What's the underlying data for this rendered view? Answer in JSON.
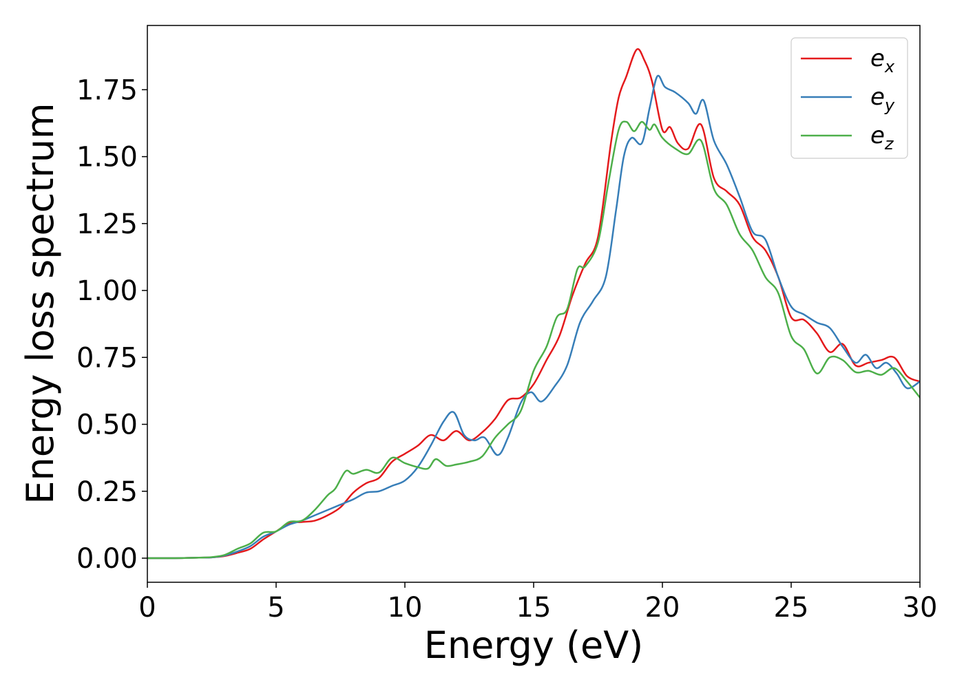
{
  "chart_data": {
    "type": "line",
    "xlabel": "Energy (eV)",
    "ylabel": "Energy loss spectrum",
    "xlim": [
      0,
      30
    ],
    "ylim": [
      -0.09,
      1.99
    ],
    "x_ticks": [
      "0",
      "5",
      "10",
      "15",
      "20",
      "25",
      "30"
    ],
    "y_ticks": [
      "0.00",
      "0.25",
      "0.50",
      "0.75",
      "1.00",
      "1.25",
      "1.50",
      "1.75"
    ],
    "grid": false,
    "legend_position": "top-right",
    "series": [
      {
        "name": "e_x",
        "legend_base": "e",
        "legend_sub": "x",
        "color": "#e41a1c",
        "points": [
          [
            0,
            0.0
          ],
          [
            1,
            0.0
          ],
          [
            2,
            0.002
          ],
          [
            2.5,
            0.003
          ],
          [
            3,
            0.008
          ],
          [
            3.5,
            0.02
          ],
          [
            4,
            0.035
          ],
          [
            4.5,
            0.07
          ],
          [
            5,
            0.1
          ],
          [
            5.5,
            0.13
          ],
          [
            6,
            0.135
          ],
          [
            6.5,
            0.14
          ],
          [
            7,
            0.16
          ],
          [
            7.5,
            0.19
          ],
          [
            8,
            0.245
          ],
          [
            8.5,
            0.28
          ],
          [
            9,
            0.3
          ],
          [
            9.5,
            0.36
          ],
          [
            10,
            0.39
          ],
          [
            10.5,
            0.42
          ],
          [
            11,
            0.46
          ],
          [
            11.5,
            0.44
          ],
          [
            12,
            0.475
          ],
          [
            12.5,
            0.44
          ],
          [
            13,
            0.47
          ],
          [
            13.5,
            0.52
          ],
          [
            14,
            0.59
          ],
          [
            14.5,
            0.6
          ],
          [
            15,
            0.65
          ],
          [
            15.5,
            0.74
          ],
          [
            16,
            0.83
          ],
          [
            16.5,
            0.98
          ],
          [
            17,
            1.1
          ],
          [
            17.5,
            1.2
          ],
          [
            18,
            1.55
          ],
          [
            18.3,
            1.72
          ],
          [
            18.6,
            1.8
          ],
          [
            19.0,
            1.9
          ],
          [
            19.3,
            1.86
          ],
          [
            19.6,
            1.78
          ],
          [
            20.0,
            1.6
          ],
          [
            20.3,
            1.61
          ],
          [
            20.6,
            1.55
          ],
          [
            21.0,
            1.53
          ],
          [
            21.5,
            1.62
          ],
          [
            22,
            1.42
          ],
          [
            22.5,
            1.37
          ],
          [
            23,
            1.32
          ],
          [
            23.5,
            1.2
          ],
          [
            24,
            1.15
          ],
          [
            24.5,
            1.05
          ],
          [
            25,
            0.9
          ],
          [
            25.5,
            0.89
          ],
          [
            26,
            0.84
          ],
          [
            26.5,
            0.77
          ],
          [
            27,
            0.8
          ],
          [
            27.5,
            0.72
          ],
          [
            28,
            0.73
          ],
          [
            28.5,
            0.74
          ],
          [
            29,
            0.75
          ],
          [
            29.5,
            0.68
          ],
          [
            30,
            0.66
          ]
        ]
      },
      {
        "name": "e_y",
        "legend_base": "e",
        "legend_sub": "y",
        "color": "#377eb8",
        "points": [
          [
            0,
            0.0
          ],
          [
            1,
            0.0
          ],
          [
            2,
            0.002
          ],
          [
            2.5,
            0.003
          ],
          [
            3,
            0.01
          ],
          [
            3.5,
            0.025
          ],
          [
            4,
            0.045
          ],
          [
            4.5,
            0.08
          ],
          [
            5,
            0.1
          ],
          [
            5.5,
            0.125
          ],
          [
            6,
            0.14
          ],
          [
            6.5,
            0.16
          ],
          [
            7,
            0.18
          ],
          [
            7.5,
            0.2
          ],
          [
            8,
            0.22
          ],
          [
            8.5,
            0.245
          ],
          [
            9,
            0.25
          ],
          [
            9.5,
            0.27
          ],
          [
            10,
            0.29
          ],
          [
            10.5,
            0.34
          ],
          [
            11,
            0.42
          ],
          [
            11.5,
            0.51
          ],
          [
            11.9,
            0.545
          ],
          [
            12.3,
            0.46
          ],
          [
            12.7,
            0.44
          ],
          [
            13.1,
            0.45
          ],
          [
            13.6,
            0.385
          ],
          [
            14,
            0.45
          ],
          [
            14.5,
            0.58
          ],
          [
            14.9,
            0.62
          ],
          [
            15.3,
            0.585
          ],
          [
            15.8,
            0.64
          ],
          [
            16.3,
            0.72
          ],
          [
            16.8,
            0.88
          ],
          [
            17.3,
            0.96
          ],
          [
            17.8,
            1.05
          ],
          [
            18.2,
            1.3
          ],
          [
            18.5,
            1.5
          ],
          [
            18.8,
            1.57
          ],
          [
            19.2,
            1.55
          ],
          [
            19.5,
            1.68
          ],
          [
            19.8,
            1.8
          ],
          [
            20.1,
            1.76
          ],
          [
            20.5,
            1.74
          ],
          [
            21,
            1.7
          ],
          [
            21.3,
            1.66
          ],
          [
            21.6,
            1.71
          ],
          [
            22,
            1.56
          ],
          [
            22.5,
            1.47
          ],
          [
            23,
            1.35
          ],
          [
            23.5,
            1.22
          ],
          [
            24,
            1.19
          ],
          [
            24.5,
            1.05
          ],
          [
            25,
            0.94
          ],
          [
            25.5,
            0.91
          ],
          [
            26,
            0.88
          ],
          [
            26.5,
            0.86
          ],
          [
            27,
            0.79
          ],
          [
            27.5,
            0.73
          ],
          [
            27.9,
            0.76
          ],
          [
            28.3,
            0.71
          ],
          [
            28.7,
            0.73
          ],
          [
            29.1,
            0.69
          ],
          [
            29.5,
            0.635
          ],
          [
            30,
            0.66
          ]
        ]
      },
      {
        "name": "e_z",
        "legend_base": "e",
        "legend_sub": "z",
        "color": "#4daf4a",
        "points": [
          [
            0,
            0.0
          ],
          [
            1,
            0.0
          ],
          [
            2,
            0.002
          ],
          [
            2.5,
            0.004
          ],
          [
            3,
            0.012
          ],
          [
            3.5,
            0.035
          ],
          [
            4,
            0.055
          ],
          [
            4.5,
            0.095
          ],
          [
            5,
            0.1
          ],
          [
            5.5,
            0.135
          ],
          [
            6,
            0.14
          ],
          [
            6.5,
            0.18
          ],
          [
            7,
            0.235
          ],
          [
            7.3,
            0.26
          ],
          [
            7.7,
            0.325
          ],
          [
            8,
            0.315
          ],
          [
            8.5,
            0.33
          ],
          [
            9,
            0.32
          ],
          [
            9.5,
            0.375
          ],
          [
            10,
            0.355
          ],
          [
            10.5,
            0.34
          ],
          [
            10.9,
            0.335
          ],
          [
            11.2,
            0.37
          ],
          [
            11.6,
            0.345
          ],
          [
            12,
            0.35
          ],
          [
            12.5,
            0.36
          ],
          [
            13,
            0.38
          ],
          [
            13.5,
            0.45
          ],
          [
            14,
            0.5
          ],
          [
            14.5,
            0.55
          ],
          [
            15,
            0.7
          ],
          [
            15.5,
            0.79
          ],
          [
            15.9,
            0.9
          ],
          [
            16.3,
            0.93
          ],
          [
            16.7,
            1.08
          ],
          [
            17,
            1.09
          ],
          [
            17.5,
            1.18
          ],
          [
            17.9,
            1.4
          ],
          [
            18.3,
            1.6
          ],
          [
            18.6,
            1.63
          ],
          [
            18.9,
            1.595
          ],
          [
            19.2,
            1.63
          ],
          [
            19.5,
            1.6
          ],
          [
            19.7,
            1.62
          ],
          [
            20,
            1.57
          ],
          [
            20.5,
            1.53
          ],
          [
            21,
            1.51
          ],
          [
            21.5,
            1.56
          ],
          [
            22,
            1.38
          ],
          [
            22.5,
            1.32
          ],
          [
            23,
            1.21
          ],
          [
            23.5,
            1.15
          ],
          [
            24,
            1.05
          ],
          [
            24.5,
            0.99
          ],
          [
            25,
            0.83
          ],
          [
            25.5,
            0.78
          ],
          [
            26,
            0.69
          ],
          [
            26.5,
            0.75
          ],
          [
            27,
            0.74
          ],
          [
            27.5,
            0.695
          ],
          [
            28,
            0.7
          ],
          [
            28.5,
            0.685
          ],
          [
            29,
            0.71
          ],
          [
            29.5,
            0.66
          ],
          [
            30,
            0.6
          ]
        ]
      }
    ]
  }
}
